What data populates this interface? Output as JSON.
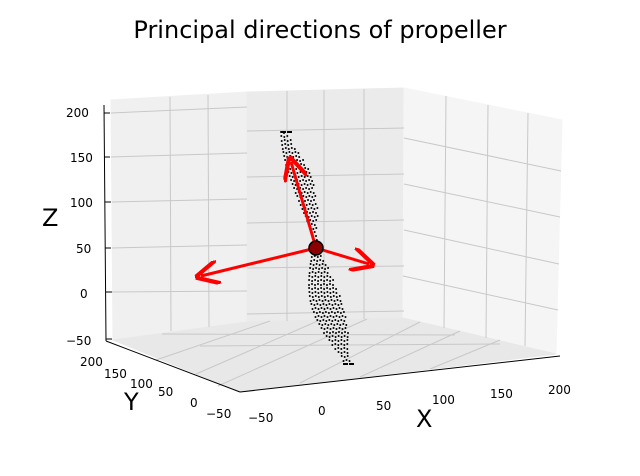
{
  "chart_data": {
    "type": "scatter3d",
    "title": "Principal directions of propeller",
    "xlabel": "X",
    "ylabel": "Y",
    "zlabel": "Z",
    "xlim": [
      -50,
      200
    ],
    "ylim": [
      -50,
      200
    ],
    "zlim": [
      -50,
      200
    ],
    "x_ticks": [
      "−50",
      "0",
      "50",
      "100",
      "150",
      "200"
    ],
    "y_ticks": [
      "−50",
      "0",
      "50",
      "100",
      "150",
      "200"
    ],
    "z_ticks": [
      "−50",
      "0",
      "50",
      "100",
      "150",
      "200"
    ],
    "series": [
      {
        "name": "propeller point cloud",
        "color": "#000000",
        "description": "vertical two-blade propeller sample points"
      }
    ],
    "centroid": {
      "color": "#8b0000"
    },
    "principal_vectors": [
      {
        "name": "principal-direction-1",
        "color": "#ff0000"
      },
      {
        "name": "principal-direction-2",
        "color": "#ff0000"
      },
      {
        "name": "principal-direction-3",
        "color": "#ff0000"
      }
    ]
  }
}
